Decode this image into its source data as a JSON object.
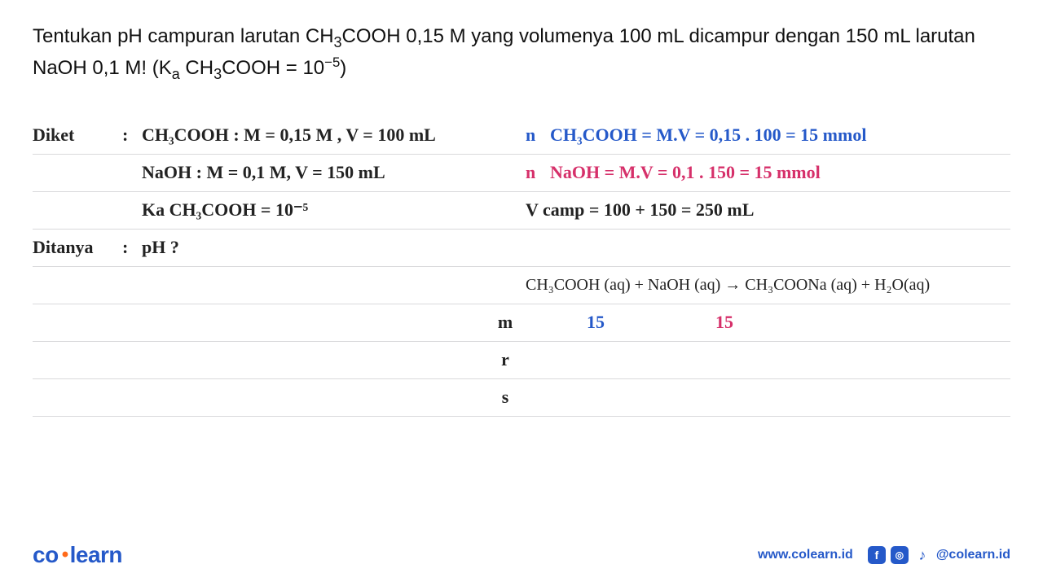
{
  "question_html": "Tentukan pH campuran larutan CH<sub>3</sub>COOH 0,15 M yang volumenya 100 mL dicampur dengan 150 mL larutan NaOH 0,1 M! (K<sub>a</sub> CH<sub>3</sub>COOH = 10<sup>&minus;5</sup>)",
  "lines": {
    "l1_label": "Diket",
    "l1_sep": ":",
    "l1_body": "CH₃COOH : M = 0,15 M , V = 100 mL",
    "r1_tag": "n",
    "r1_body": "CH₃COOH =  M.V  = 0,15 . 100 = 15 mmol",
    "l2_body": "NaOH       : M = 0,1 M,   V = 150 mL",
    "r2_tag": "n",
    "r2_body": "NaOH      =  M.V =  0,1 . 150  = 15 mmol",
    "l3_body": "Ka  CH₃COOH  = 10⁻⁵",
    "r3_body": "V camp  =  100 + 150 = 250 mL",
    "l4_label": "Ditanya",
    "l4_sep": ":",
    "l4_body": "pH ?",
    "reaction": "CH₃COOH (aq)  +  NaOH (aq)   →   CH₃COONa (aq) + H₂O(aq)",
    "m_label": "m",
    "m_v1": "15",
    "m_v2": "15",
    "r_label": "r",
    "s_label": "s"
  },
  "footer": {
    "brand_a": "co",
    "brand_b": "learn",
    "url": "www.colearn.id",
    "handle": "@colearn.id"
  },
  "colors": {
    "blue": "#2559c9",
    "pink": "#d6306a",
    "orange": "#ff6a1a",
    "line": "#d9d9db"
  }
}
